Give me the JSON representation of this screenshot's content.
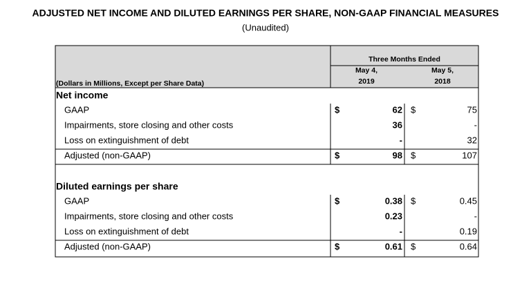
{
  "header": {
    "title": "ADJUSTED NET INCOME AND DILUTED EARNINGS PER SHARE, NON-GAAP FINANCIAL MEASURES",
    "subtitle": "(Unaudited)"
  },
  "table": {
    "units": "(Dollars in Millions, Except per Share Data)",
    "period": "Three Months Ended",
    "columns": [
      [
        "May 4,",
        "2019"
      ],
      [
        "May 5,",
        "2018"
      ]
    ],
    "sections": [
      {
        "title": "Net income",
        "rows": [
          {
            "label": "GAAP",
            "sign1": "$",
            "c1": "62",
            "sign2": "$",
            "c2": "75"
          },
          {
            "label": "Impairments, store closing and other costs",
            "c1": "36",
            "c2": "-"
          },
          {
            "label": "Loss on extinguishment of debt",
            "c1": "-",
            "c2": "32"
          },
          {
            "label": "Adjusted (non-GAAP)",
            "sign1": "$",
            "c1": "98",
            "sign2": "$",
            "c2": "107"
          }
        ]
      },
      {
        "title": "Diluted earnings per share",
        "rows": [
          {
            "label": "GAAP",
            "sign1": "$",
            "c1": "0.38",
            "sign2": "$",
            "c2": "0.45"
          },
          {
            "label": "Impairments, store closing and other costs",
            "c1": "0.23",
            "c2": "-"
          },
          {
            "label": "Loss on extinguishment of debt",
            "c1": "-",
            "c2": "0.19"
          },
          {
            "label": "Adjusted (non-GAAP)",
            "sign1": "$",
            "c1": "0.61",
            "sign2": "$",
            "c2": "0.64"
          }
        ]
      }
    ]
  }
}
